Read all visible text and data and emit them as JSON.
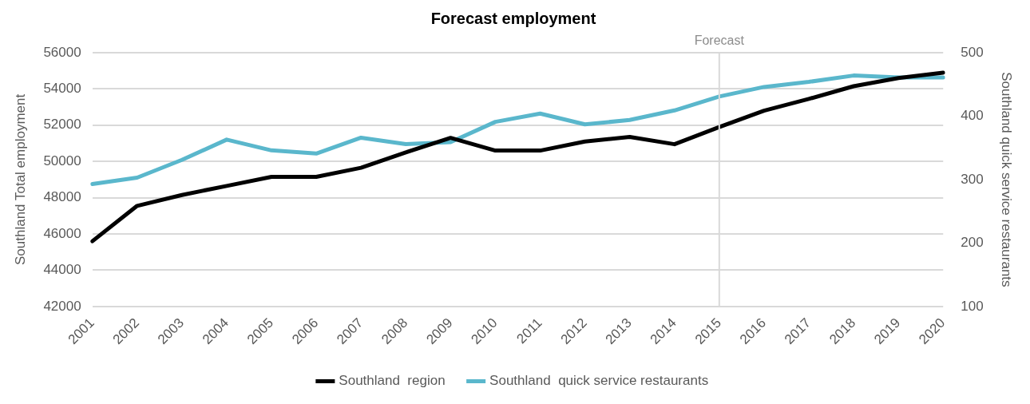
{
  "chart_data": {
    "type": "line",
    "title": "Forecast employment",
    "ylabel": "Southland Total employment",
    "y2label": "Southland quick service restaurants",
    "categories": [
      "2001",
      "2002",
      "2003",
      "2004",
      "2005",
      "2006",
      "2007",
      "2008",
      "2009",
      "2010",
      "2011",
      "2012",
      "2013",
      "2014",
      "2015",
      "2016",
      "2017",
      "2018",
      "2019",
      "2020"
    ],
    "series": [
      {
        "name": "Southland  region",
        "color": "#000000",
        "values": [
          45600,
          47550,
          48150,
          48650,
          49150,
          49150,
          49650,
          50500,
          51300,
          50600,
          50600,
          51100,
          51350,
          50950,
          51900,
          52800,
          53450,
          54150,
          54600,
          54900
        ]
      },
      {
        "name": "Southland  quick service restaurants",
        "color": "#5ab7cc",
        "axis": "y2",
        "values": [
          293,
          303,
          331,
          363,
          346,
          341,
          366,
          356,
          359,
          391,
          404,
          387,
          394,
          409,
          431,
          446,
          454,
          464,
          461,
          461
        ]
      }
    ],
    "ylim": [
      42000,
      56000
    ],
    "yticks": [
      42000,
      44000,
      46000,
      48000,
      50000,
      52000,
      54000,
      56000
    ],
    "y2lim": [
      100,
      500
    ],
    "y2ticks": [
      100,
      200,
      300,
      400,
      500
    ],
    "ref_lines": [
      {
        "axis": "x",
        "value": "2015",
        "label": "Forecast",
        "color": "#d9d9d9"
      }
    ],
    "grid": "y",
    "legend": "bottom",
    "marker": "none",
    "line_style": "solid"
  }
}
